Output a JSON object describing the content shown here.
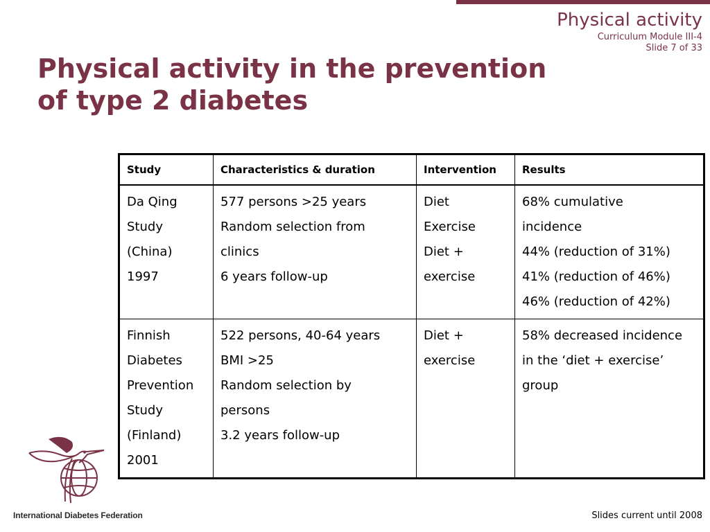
{
  "header": {
    "section_title": "Physical activity",
    "module": "Curriculum Module III-4",
    "slide": "Slide 7 of 33"
  },
  "title": {
    "line1": "Physical activity in the prevention",
    "line2": "of type 2 diabetes"
  },
  "table": {
    "headers": [
      "Study",
      "Characteristics & duration",
      "Intervention",
      "Results"
    ],
    "rows": [
      {
        "study": [
          "Da Qing",
          "Study",
          "(China)",
          "1997"
        ],
        "characteristics": [
          "577 persons >25 years",
          "Random selection from",
          "clinics",
          "6 years follow-up"
        ],
        "intervention": [
          "Diet",
          "Exercise",
          "Diet +",
          "exercise"
        ],
        "results": [
          "68% cumulative",
          "incidence",
          "44% (reduction of 31%)",
          "41% (reduction of 46%)",
          "46% (reduction of 42%)"
        ]
      },
      {
        "study": [
          "Finnish",
          "Diabetes",
          "Prevention",
          "Study",
          "(Finland)",
          "2001"
        ],
        "characteristics": [
          "522 persons, 40-64 years",
          "BMI >25",
          "Random selection by",
          "persons",
          "3.2 years follow-up"
        ],
        "intervention": [
          "Diet +",
          "exercise"
        ],
        "results": [
          "58% decreased incidence",
          "in the ‘diet + exercise’",
          "group"
        ]
      }
    ]
  },
  "footer": {
    "organization": "International Diabetes Federation",
    "note": "Slides current until 2008"
  },
  "colors": {
    "accent": "#7a3346"
  },
  "icons": {
    "logo": "hummingbird-globe-logo"
  }
}
